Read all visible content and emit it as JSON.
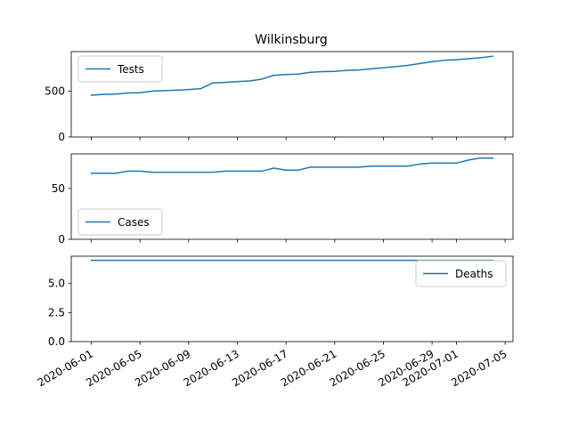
{
  "chart_data": {
    "type": "line",
    "title": "Wilkinsburg",
    "x": [
      "2020-06-01",
      "2020-06-02",
      "2020-06-03",
      "2020-06-04",
      "2020-06-05",
      "2020-06-06",
      "2020-06-07",
      "2020-06-08",
      "2020-06-09",
      "2020-06-10",
      "2020-06-11",
      "2020-06-12",
      "2020-06-13",
      "2020-06-14",
      "2020-06-15",
      "2020-06-16",
      "2020-06-17",
      "2020-06-18",
      "2020-06-19",
      "2020-06-20",
      "2020-06-21",
      "2020-06-22",
      "2020-06-23",
      "2020-06-24",
      "2020-06-25",
      "2020-06-26",
      "2020-06-27",
      "2020-06-28",
      "2020-06-29",
      "2020-06-30",
      "2020-07-01",
      "2020-07-02",
      "2020-07-03",
      "2020-07-04"
    ],
    "xticks": [
      "2020-06-01",
      "2020-06-05",
      "2020-06-09",
      "2020-06-13",
      "2020-06-17",
      "2020-06-21",
      "2020-06-25",
      "2020-06-29",
      "2020-07-01",
      "2020-07-05"
    ],
    "grid": false,
    "color": "#1f77b4",
    "panels": [
      {
        "name": "Tests",
        "legend_position": "upper-left",
        "ylim": [
          0,
          930
        ],
        "yticks": [
          0,
          500
        ],
        "ytick_labels": [
          "0",
          "500"
        ],
        "values": [
          455,
          465,
          467,
          480,
          482,
          500,
          505,
          510,
          517,
          527,
          590,
          595,
          603,
          610,
          630,
          672,
          680,
          685,
          705,
          712,
          715,
          725,
          730,
          742,
          754,
          767,
          780,
          800,
          820,
          835,
          842,
          852,
          863,
          880
        ]
      },
      {
        "name": "Cases",
        "legend_position": "lower-left",
        "ylim": [
          0,
          84
        ],
        "yticks": [
          0,
          50
        ],
        "ytick_labels": [
          "0",
          "50"
        ],
        "values": [
          65,
          65,
          65,
          67,
          67,
          66,
          66,
          66,
          66,
          66,
          66,
          67,
          67,
          67,
          67,
          70,
          68,
          68,
          71,
          71,
          71,
          71,
          71,
          72,
          72,
          72,
          72,
          74,
          75,
          75,
          75,
          78,
          80,
          80
        ]
      },
      {
        "name": "Deaths",
        "legend_position": "upper-right",
        "ylim": [
          0,
          7.35
        ],
        "yticks": [
          0,
          2.5,
          5.0
        ],
        "ytick_labels": [
          "0.0",
          "2.5",
          "5.0"
        ],
        "values": [
          7,
          7,
          7,
          7,
          7,
          7,
          7,
          7,
          7,
          7,
          7,
          7,
          7,
          7,
          7,
          7,
          7,
          7,
          7,
          7,
          7,
          7,
          7,
          7,
          7,
          7,
          7,
          7,
          7,
          7,
          7,
          7,
          7,
          7
        ]
      }
    ]
  }
}
